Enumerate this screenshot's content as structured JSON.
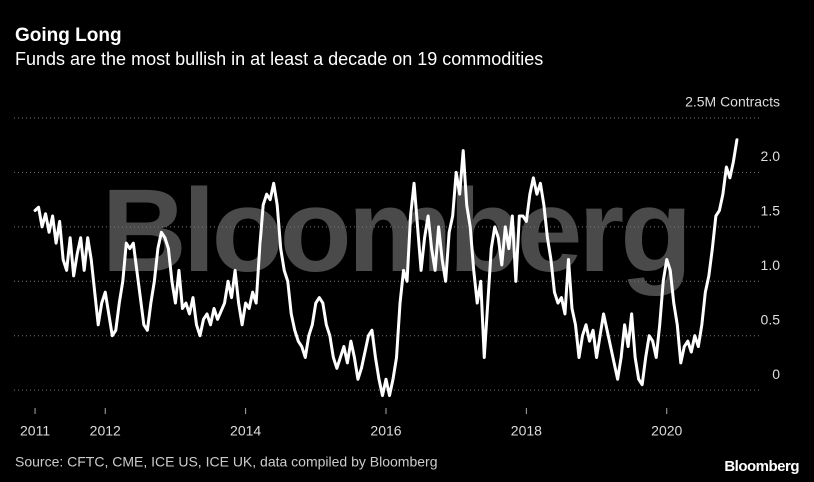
{
  "chart_data": {
    "type": "line",
    "title": "Going Long",
    "subtitle": "Funds are the most bullish in at least a decade on 19 commodities",
    "watermark": "Bloomberg",
    "source": "Source: CFTC, CME, ICE US, ICE UK, data compiled by Bloomberg",
    "logo": "Bloomberg",
    "color": "#ffffff",
    "grid": true,
    "xlim": [
      2010.7,
      2021.4
    ],
    "xticks": [
      2011,
      2012,
      2014,
      2016,
      2018,
      2020
    ],
    "ylim": [
      -0.1,
      2.5
    ],
    "yticks": [
      0,
      0.5,
      {
        "value": 1,
        "label": "1.0"
      },
      1.5,
      {
        "value": 2,
        "label": "2.0"
      },
      {
        "value": 2.5,
        "label": "2.5M Contracts"
      }
    ],
    "x": [
      2011.0,
      2011.05,
      2011.1,
      2011.15,
      2011.2,
      2011.25,
      2011.3,
      2011.35,
      2011.4,
      2011.45,
      2011.5,
      2011.55,
      2011.6,
      2011.65,
      2011.7,
      2011.75,
      2011.8,
      2011.85,
      2011.9,
      2011.95,
      2012.0,
      2012.05,
      2012.1,
      2012.15,
      2012.2,
      2012.25,
      2012.3,
      2012.35,
      2012.4,
      2012.45,
      2012.5,
      2012.55,
      2012.6,
      2012.65,
      2012.7,
      2012.75,
      2012.8,
      2012.85,
      2012.9,
      2012.95,
      2013.0,
      2013.05,
      2013.1,
      2013.15,
      2013.2,
      2013.25,
      2013.3,
      2013.35,
      2013.4,
      2013.45,
      2013.5,
      2013.55,
      2013.6,
      2013.7,
      2013.75,
      2013.8,
      2013.85,
      2013.9,
      2013.95,
      2014.0,
      2014.05,
      2014.1,
      2014.15,
      2014.2,
      2014.25,
      2014.3,
      2014.35,
      2014.4,
      2014.45,
      2014.5,
      2014.55,
      2014.6,
      2014.65,
      2014.7,
      2014.75,
      2014.8,
      2014.85,
      2014.9,
      2014.95,
      2015.0,
      2015.05,
      2015.1,
      2015.15,
      2015.2,
      2015.25,
      2015.3,
      2015.35,
      2015.4,
      2015.45,
      2015.5,
      2015.55,
      2015.6,
      2015.65,
      2015.7,
      2015.75,
      2015.8,
      2015.85,
      2015.9,
      2015.95,
      2016.0,
      2016.05,
      2016.1,
      2016.15,
      2016.2,
      2016.25,
      2016.3,
      2016.35,
      2016.4,
      2016.45,
      2016.5,
      2016.55,
      2016.6,
      2016.65,
      2016.7,
      2016.75,
      2016.8,
      2016.85,
      2016.9,
      2016.95,
      2017.0,
      2017.05,
      2017.1,
      2017.15,
      2017.2,
      2017.25,
      2017.3,
      2017.35,
      2017.4,
      2017.45,
      2017.5,
      2017.55,
      2017.6,
      2017.65,
      2017.7,
      2017.75,
      2017.8,
      2017.85,
      2017.9,
      2017.95,
      2018.0,
      2018.05,
      2018.1,
      2018.15,
      2018.2,
      2018.25,
      2018.3,
      2018.35,
      2018.4,
      2018.45,
      2018.5,
      2018.55,
      2018.6,
      2018.65,
      2018.7,
      2018.75,
      2018.8,
      2018.85,
      2018.9,
      2018.95,
      2019.0,
      2019.05,
      2019.1,
      2019.15,
      2019.2,
      2019.25,
      2019.3,
      2019.35,
      2019.4,
      2019.45,
      2019.5,
      2019.55,
      2019.6,
      2019.65,
      2019.7,
      2019.75,
      2019.8,
      2019.85,
      2019.9,
      2019.95,
      2020.0,
      2020.05,
      2020.1,
      2020.15,
      2020.2,
      2020.25,
      2020.3,
      2020.35,
      2020.4,
      2020.45,
      2020.5,
      2020.55,
      2020.6,
      2020.65,
      2020.7,
      2020.75,
      2020.8,
      2020.85,
      2020.9,
      2020.95,
      2021.0
    ],
    "values": [
      1.65,
      1.68,
      1.5,
      1.62,
      1.45,
      1.6,
      1.35,
      1.55,
      1.2,
      1.1,
      1.4,
      1.05,
      1.25,
      1.4,
      1.1,
      1.4,
      1.2,
      0.9,
      0.6,
      0.8,
      0.9,
      0.7,
      0.5,
      0.55,
      0.8,
      1.0,
      1.35,
      1.3,
      1.35,
      1.1,
      0.85,
      0.6,
      0.55,
      0.8,
      1.0,
      1.3,
      1.45,
      1.4,
      1.3,
      1.0,
      0.8,
      1.1,
      0.75,
      0.8,
      0.7,
      0.85,
      0.6,
      0.5,
      0.65,
      0.7,
      0.6,
      0.75,
      0.65,
      0.8,
      1.0,
      0.85,
      1.1,
      0.8,
      0.6,
      0.8,
      0.75,
      0.9,
      0.8,
      1.3,
      1.7,
      1.8,
      1.75,
      1.9,
      1.7,
      1.3,
      1.1,
      1.0,
      0.7,
      0.55,
      0.45,
      0.4,
      0.3,
      0.5,
      0.6,
      0.8,
      0.85,
      0.8,
      0.6,
      0.5,
      0.3,
      0.2,
      0.3,
      0.4,
      0.25,
      0.45,
      0.3,
      0.1,
      0.2,
      0.35,
      0.5,
      0.55,
      0.3,
      0.1,
      -0.05,
      0.1,
      -0.05,
      0.1,
      0.3,
      0.8,
      1.1,
      1.0,
      1.6,
      1.9,
      1.5,
      1.1,
      1.4,
      1.6,
      1.3,
      1.1,
      1.5,
      1.2,
      1.0,
      1.45,
      1.6,
      2.0,
      1.8,
      2.2,
      1.7,
      1.5,
      1.1,
      0.8,
      1.0,
      0.3,
      0.8,
      1.3,
      1.5,
      1.4,
      1.15,
      1.5,
      1.3,
      1.6,
      1.0,
      1.6,
      1.6,
      1.55,
      1.8,
      1.95,
      1.8,
      1.9,
      1.7,
      1.4,
      1.2,
      0.9,
      0.8,
      0.85,
      0.7,
      1.2,
      0.75,
      0.6,
      0.3,
      0.5,
      0.6,
      0.45,
      0.55,
      0.3,
      0.5,
      0.7,
      0.55,
      0.4,
      0.25,
      0.1,
      0.3,
      0.6,
      0.4,
      0.7,
      0.3,
      0.1,
      0.05,
      0.3,
      0.5,
      0.45,
      0.3,
      0.6,
      1.0,
      1.2,
      1.1,
      0.8,
      0.6,
      0.25,
      0.4,
      0.45,
      0.35,
      0.5,
      0.4,
      0.6,
      0.9,
      1.05,
      1.3,
      1.6,
      1.65,
      1.8,
      2.05,
      1.95,
      2.1,
      2.3
    ]
  }
}
